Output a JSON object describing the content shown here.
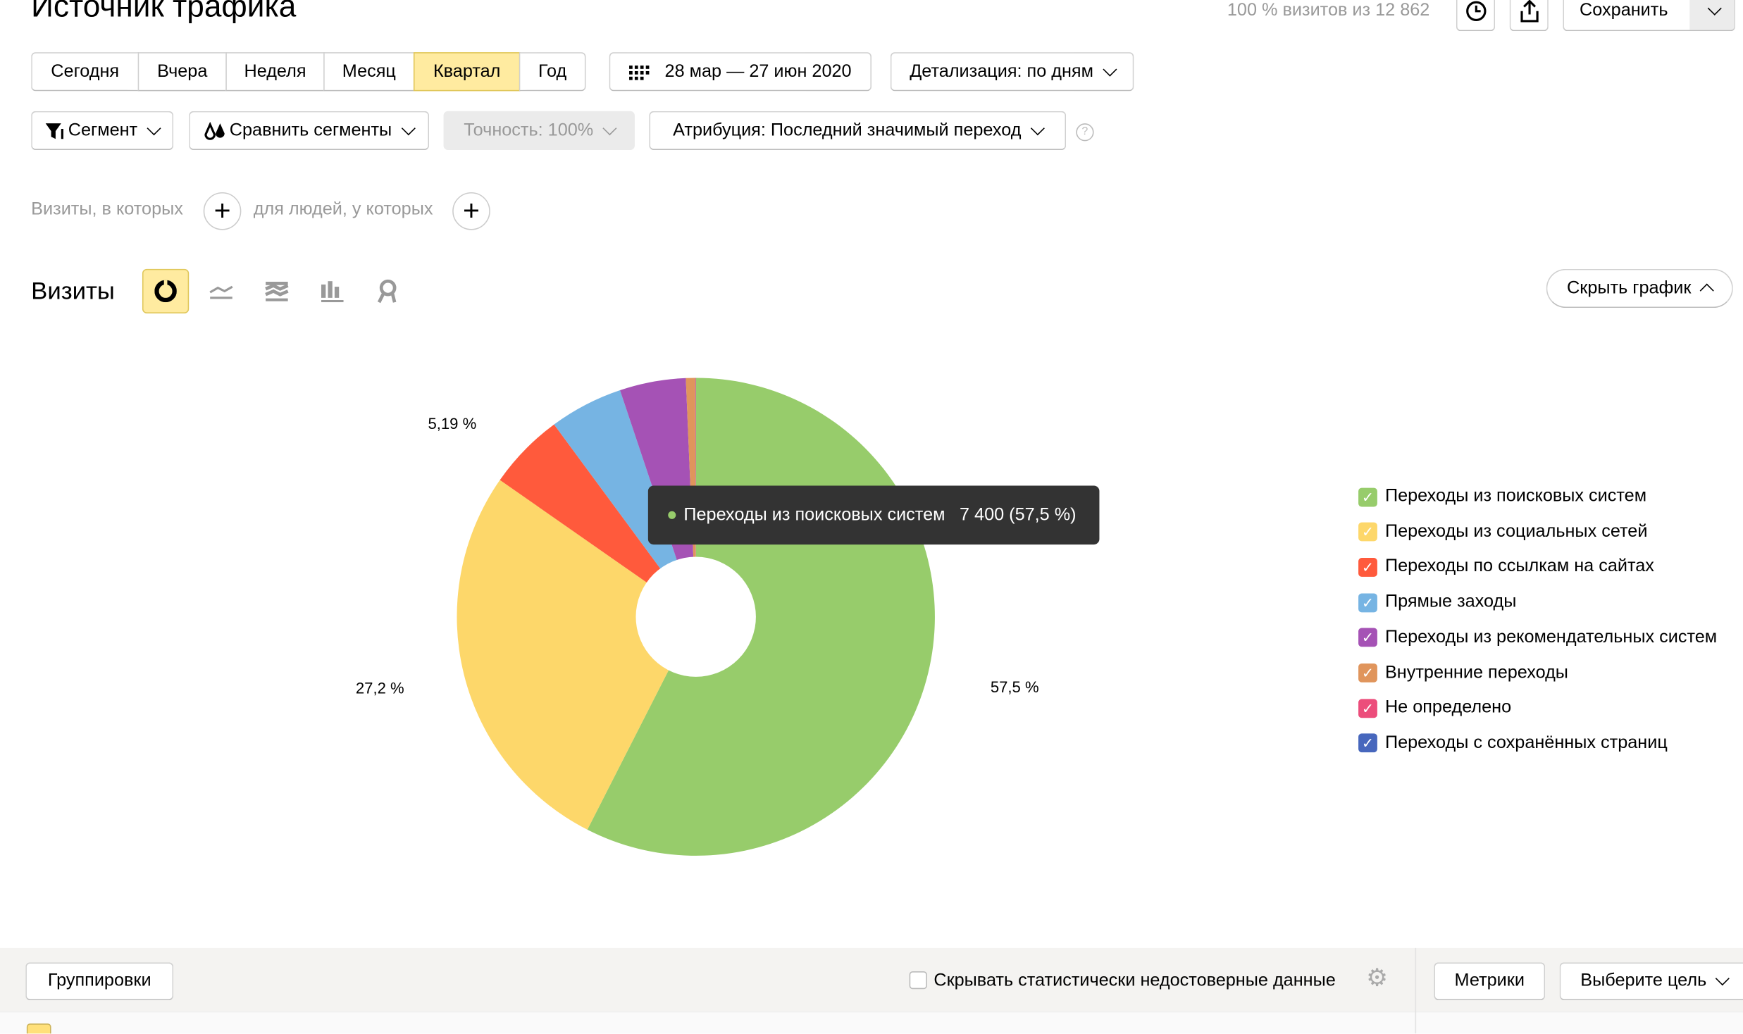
{
  "header": {
    "title": "Источник трафика",
    "visits_info": "100 % визитов из 12 862",
    "save_label": "Сохранить"
  },
  "periods": [
    "Сегодня",
    "Вчера",
    "Неделя",
    "Месяц",
    "Квартал",
    "Год"
  ],
  "active_period": "Квартал",
  "date_range": "28 мар — 27 июн 2020",
  "detail": "Детализация: по дням",
  "segment": "Сегмент",
  "compare": "Сравнить сегменты",
  "accuracy": "Точность: 100%",
  "attribution": "Атрибуция: Последний значимый переход",
  "filters": {
    "visits": "Визиты, в которых",
    "people": "для людей, у которых"
  },
  "chart_section": {
    "title": "Визиты",
    "hide_label": "Скрыть график"
  },
  "tooltip": {
    "label": "Переходы из поисковых систем",
    "value": "7 400 (57,5 %)"
  },
  "chart_data": {
    "type": "pie",
    "title": "Визиты",
    "series": [
      {
        "name": "Переходы из поисковых систем",
        "value": 57.5,
        "color": "#97cc6b",
        "label": "57,5 %"
      },
      {
        "name": "Переходы из социальных сетей",
        "value": 27.2,
        "color": "#fdd76a",
        "label": "27,2 %"
      },
      {
        "name": "Переходы по ссылкам на сайтах",
        "value": 5.19,
        "color": "#ff5a3c",
        "label": "5,19 %"
      },
      {
        "name": "Прямые заходы",
        "value": 4.97,
        "color": "#76b4e3",
        "label": ""
      },
      {
        "name": "Переходы из рекомендательных систем",
        "value": 4.47,
        "color": "#a552b5",
        "label": ""
      },
      {
        "name": "Внутренние переходы",
        "value": 0.62,
        "color": "#e0955c",
        "label": ""
      },
      {
        "name": "Не определено",
        "value": 0.04,
        "color": "#ec4d7b",
        "label": ""
      },
      {
        "name": "Переходы с сохранённых страниц",
        "value": 0.01,
        "color": "#4767bd",
        "label": ""
      }
    ],
    "legend": "right"
  },
  "bottom": {
    "groupings": "Группировки",
    "hide_unreliable": "Скрывать статистически недостоверные данные",
    "metrics": "Метрики",
    "goal": "Выберите цель"
  }
}
